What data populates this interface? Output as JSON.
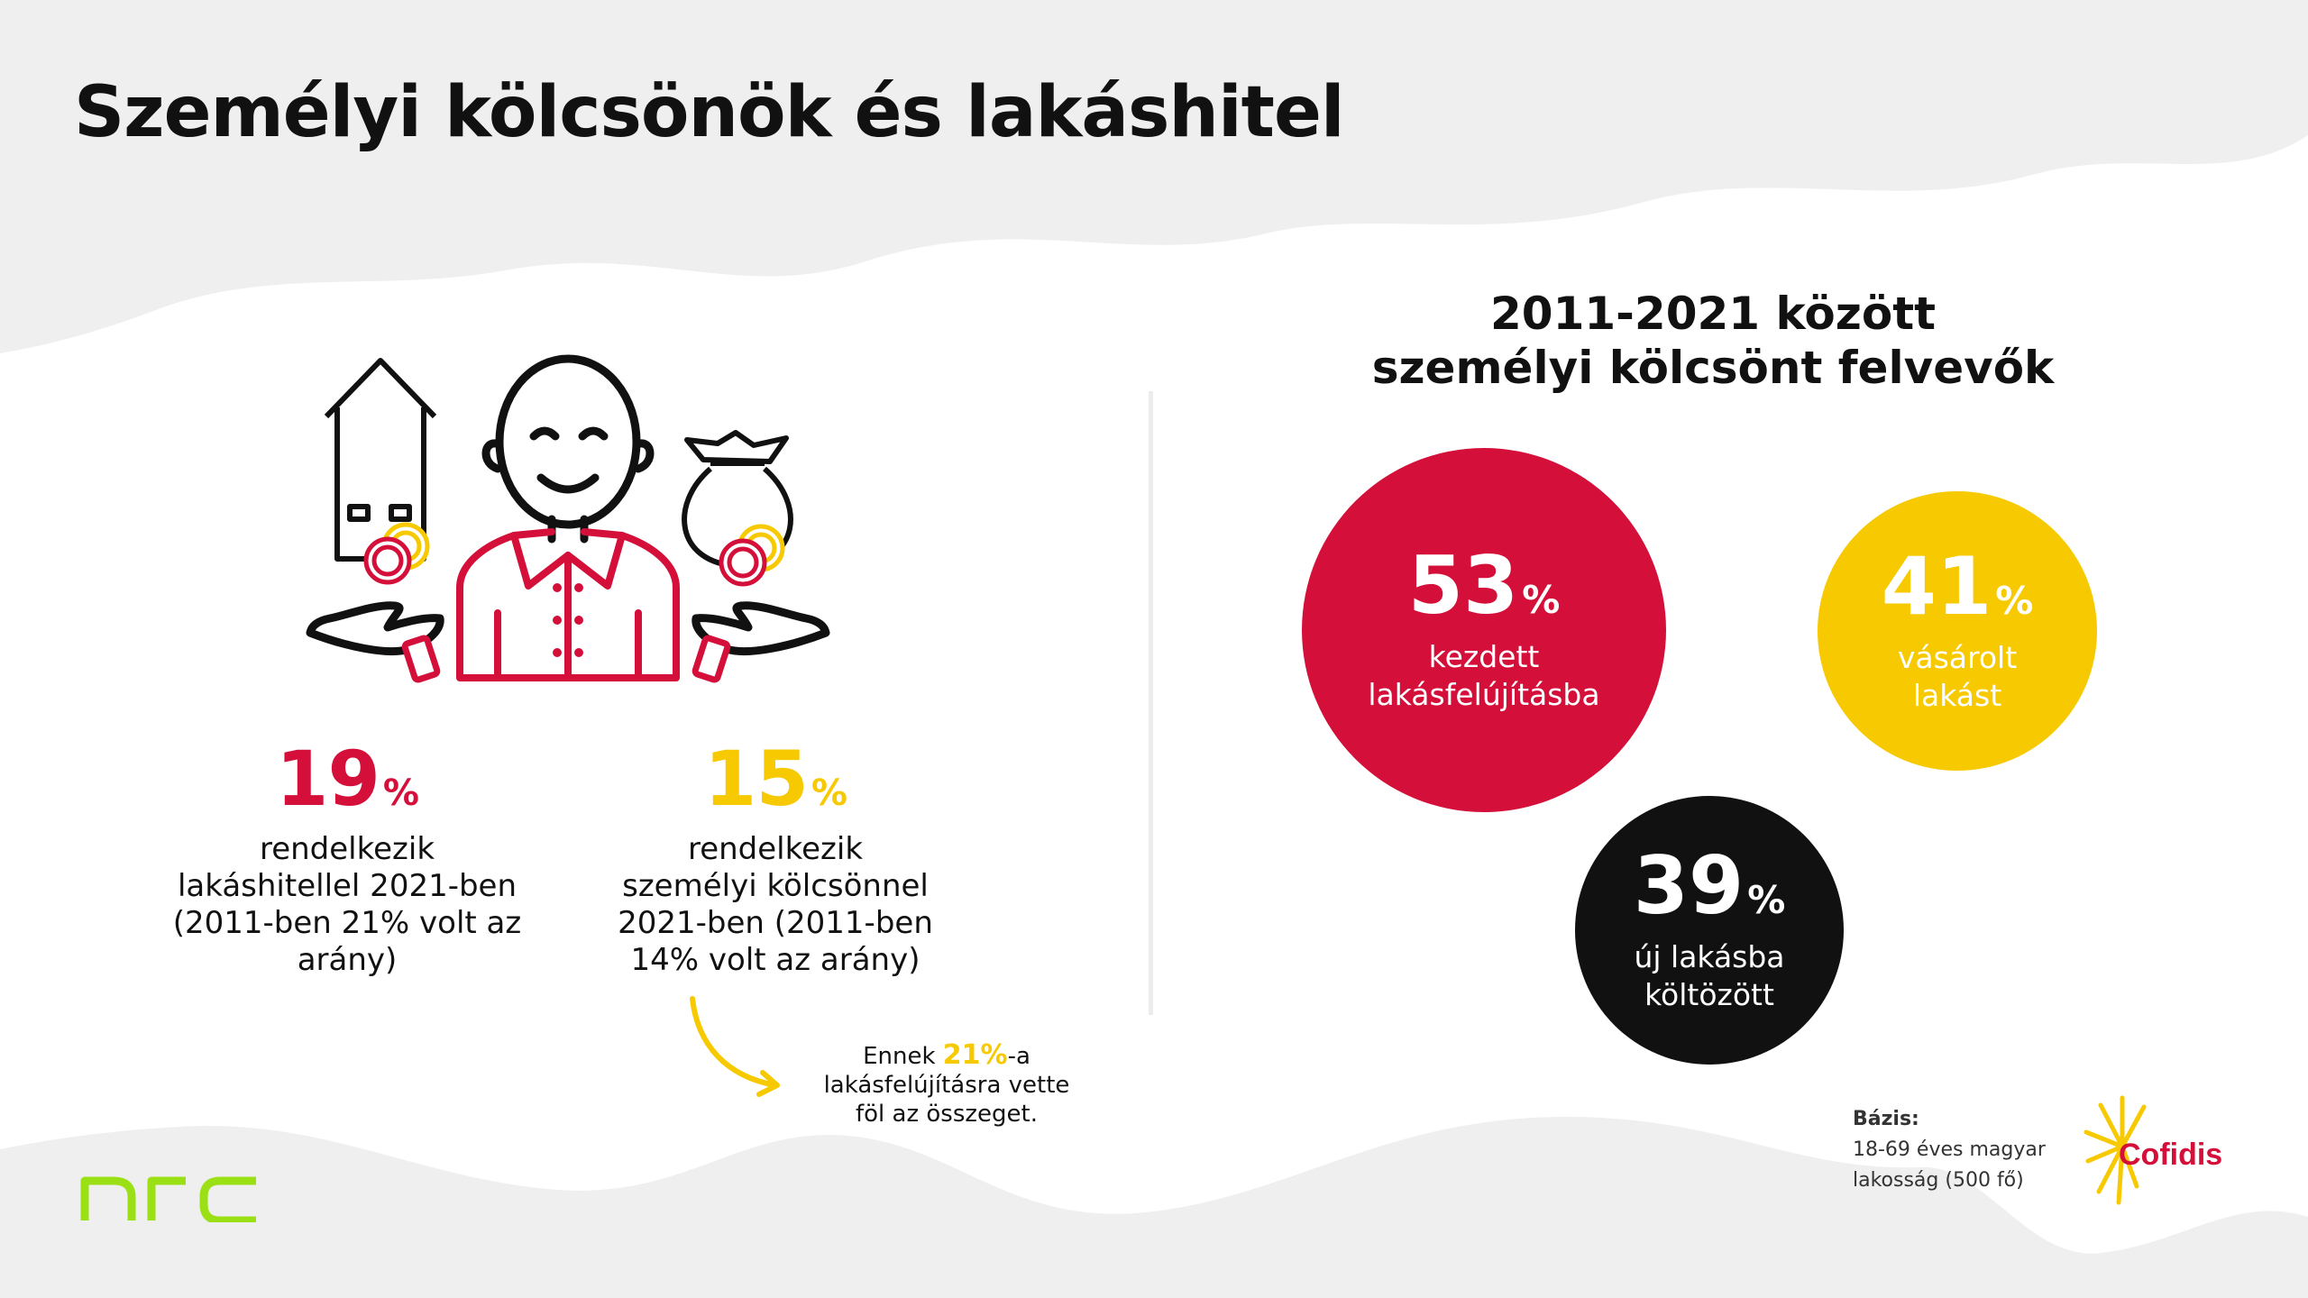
{
  "title": "Személyi kölcsönök és lakáshitel",
  "colors": {
    "red": "#d4103a",
    "yellow": "#f7c900",
    "black": "#111111",
    "gray_bg": "#efefef",
    "nrc_green": "#9be015"
  },
  "illustration": {
    "icons": [
      "house-icon",
      "coins-icon",
      "smiling-person-icon",
      "open-hand-icon",
      "money-bag-icon"
    ]
  },
  "stats": [
    {
      "value": "19",
      "unit": "%",
      "text": [
        "rendelkezik",
        "lakáshitellel 2021-ben",
        "(2011-ben 21% volt az",
        "arány)"
      ]
    },
    {
      "value": "15",
      "unit": "%",
      "text": [
        "rendelkezik",
        "személyi kölcsönnel",
        "2021-ben (2011-ben",
        "14% volt az arány)"
      ]
    }
  ],
  "note": {
    "prefix": "Ennek ",
    "highlight": "21%",
    "suffix": "-a",
    "lines": [
      "lakásfelújításra vette",
      "föl az összeget."
    ]
  },
  "right_panel": {
    "title_lines": [
      "2011-2021 között",
      "személyi kölcsönt felvevők"
    ]
  },
  "base": {
    "heading": "Bázis:",
    "lines": [
      "18-69 éves magyar",
      "lakosság (500 fő)"
    ]
  },
  "brands": {
    "nrc": "nrc",
    "cofidis": "Cofidis"
  },
  "chart_data": {
    "type": "bubble",
    "title": "2011-2021 között személyi kölcsönt felvevők",
    "unit": "%",
    "categories": [
      "kezdett lakásfelújításba",
      "vásárolt lakást",
      "új lakásba költözött"
    ],
    "values": [
      53,
      41,
      39
    ],
    "items": [
      {
        "value": "53",
        "unit": "%",
        "label_lines": [
          "kezdett",
          "lakásfelújításba"
        ],
        "color": "#d4103a"
      },
      {
        "value": "41",
        "unit": "%",
        "label_lines": [
          "vásárolt",
          "lakást"
        ],
        "color": "#f7c900"
      },
      {
        "value": "39",
        "unit": "%",
        "label_lines": [
          "új lakásba",
          "költözött"
        ],
        "color": "#111111"
      }
    ]
  }
}
